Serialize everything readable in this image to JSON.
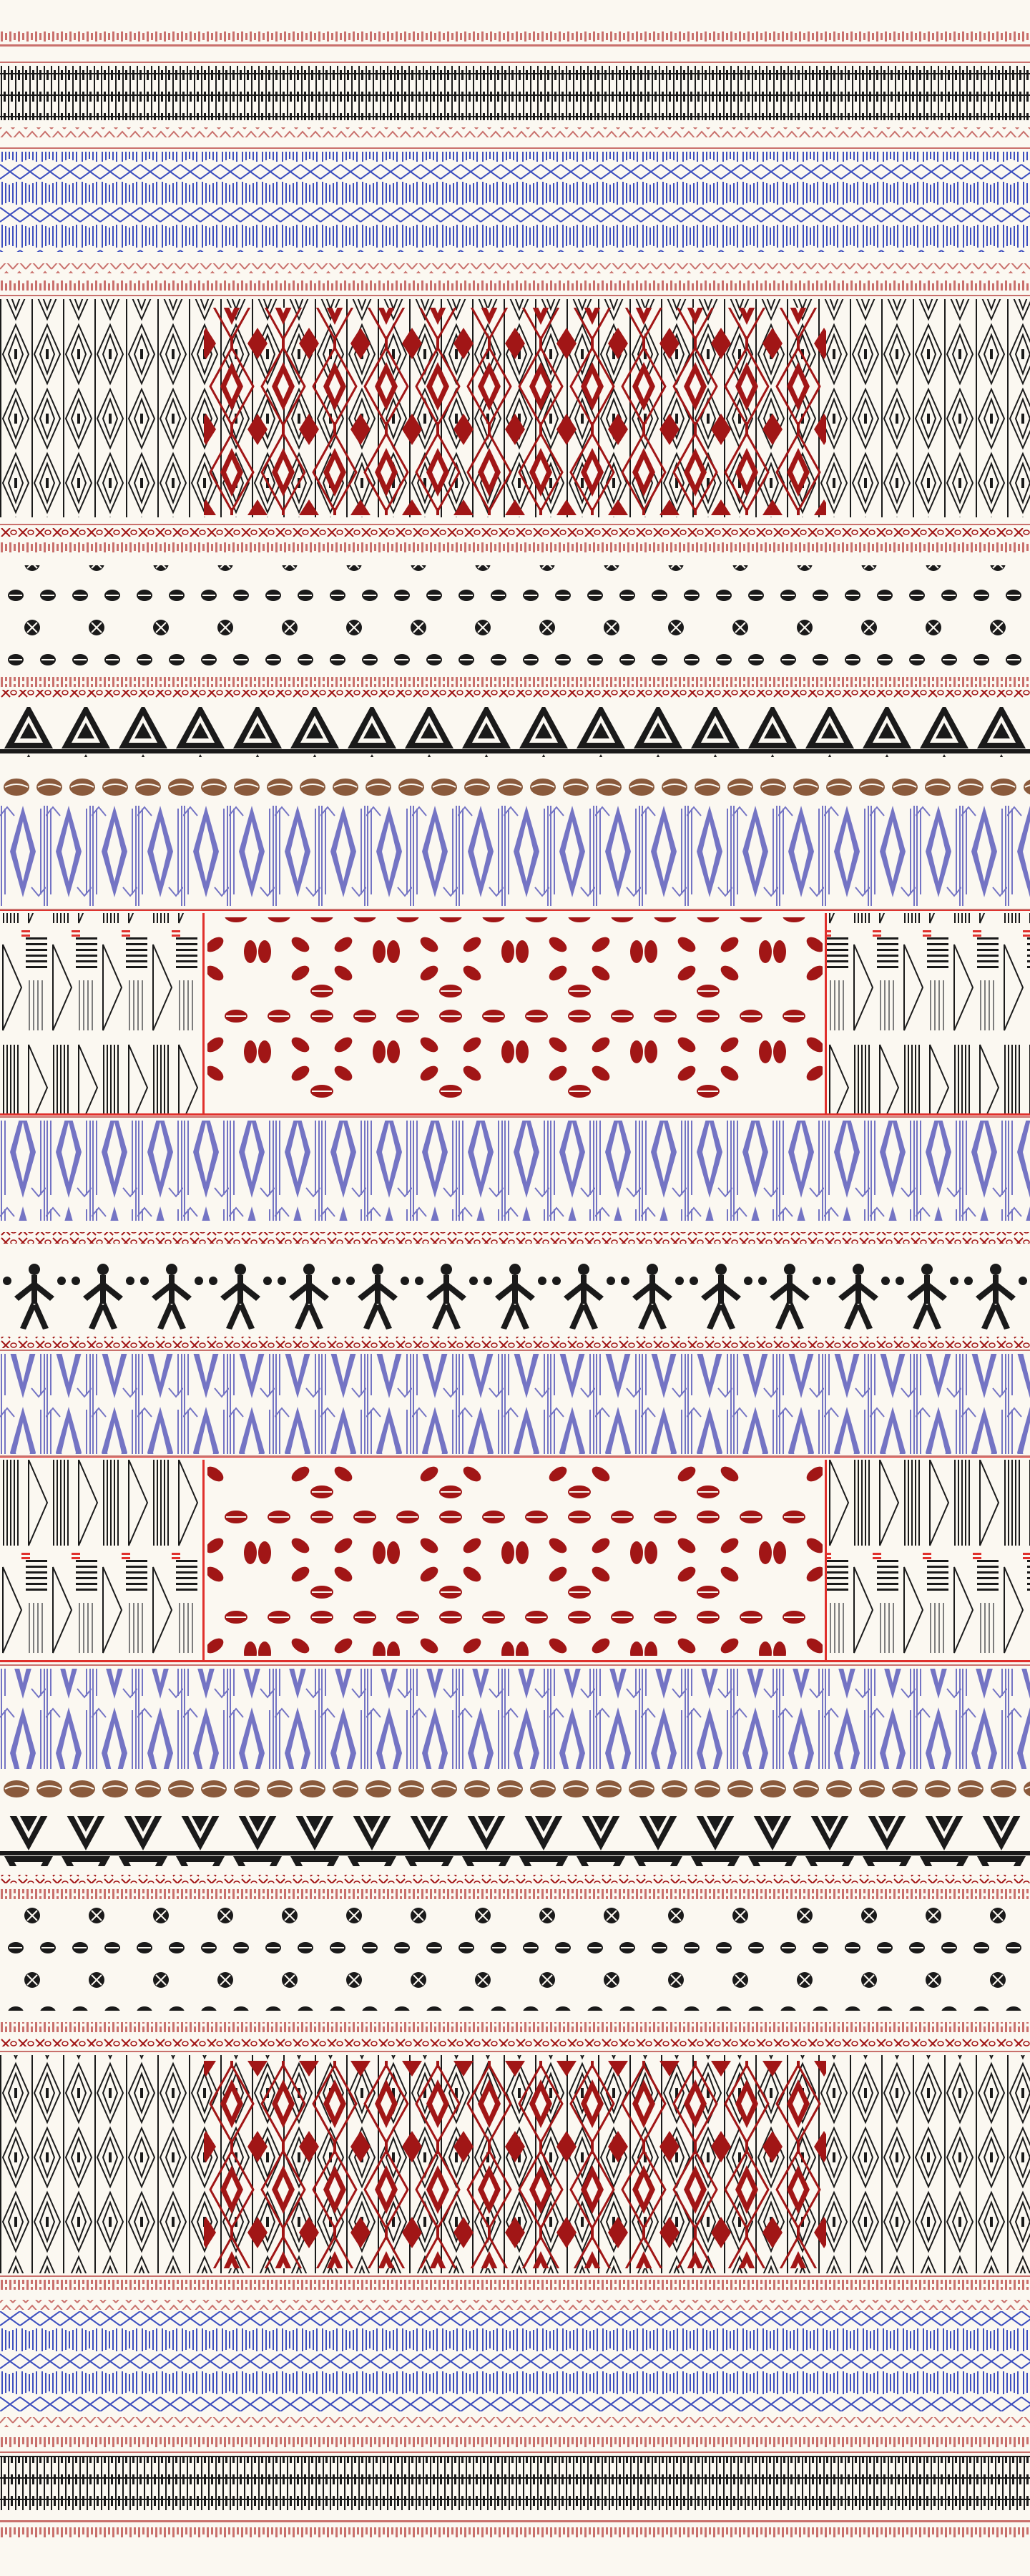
{
  "palette": {
    "background": "#fbf8f1",
    "black": "#1a1a1a",
    "red": "#a11616",
    "rose": "#c9706c",
    "blue": "#3d4fbf",
    "lavender": "#7474c4",
    "brown": "#8a5a3c",
    "scarlet": "#e0302c",
    "gray": "#7d7d7d"
  },
  "pattern_names": [
    "border-stripe",
    "zigzag-stripe",
    "ikat-diamond-panel",
    "cowrie-row",
    "triangle-frieze",
    "coffee-bean-row",
    "lavender-ikat",
    "cowrie-medallion-panel",
    "dancing-figures-row",
    "geometric-side-panel"
  ]
}
